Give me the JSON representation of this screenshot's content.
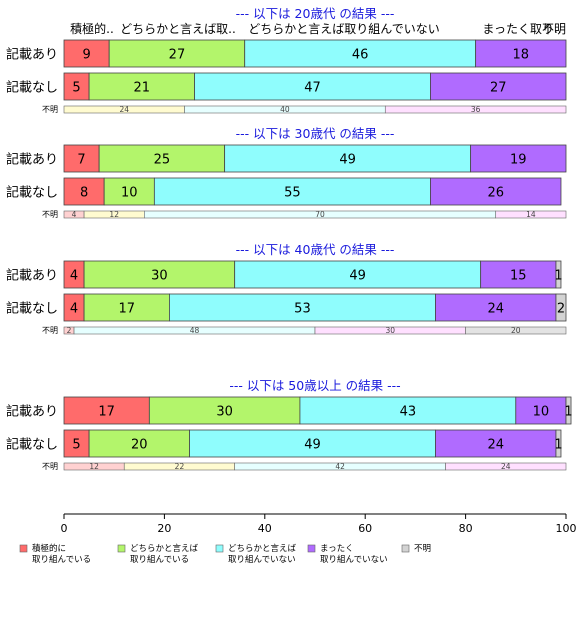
{
  "chart_data": {
    "type": "bar",
    "orientation": "horizontal",
    "stacked": true,
    "xlim": [
      0,
      100
    ],
    "x_ticks": [
      0,
      20,
      40,
      60,
      80,
      100
    ],
    "column_headers": [
      "積極的..",
      "どちらかと言えば取..",
      "どちらかと言えば取り組んでいない",
      "まったく取り..",
      "不明"
    ],
    "legend": [
      {
        "key": "c1",
        "lines": [
          "積極的に",
          "取り組んでいる"
        ],
        "color": "#ff6b6b"
      },
      {
        "key": "c2",
        "lines": [
          "どちらかと言えば",
          "取り組んでいる"
        ],
        "color": "#b3f56b"
      },
      {
        "key": "c3",
        "lines": [
          "どちらかと言えば",
          "取り組んでいない"
        ],
        "color": "#8ffdfd"
      },
      {
        "key": "c4",
        "lines": [
          "まったく",
          "取り組んでいない"
        ],
        "color": "#b06bff"
      },
      {
        "key": "c5",
        "lines": [
          "不明"
        ],
        "color": "#d3d3d3"
      }
    ],
    "small_colors": [
      "#ffd1d1",
      "#fffbd0",
      "#e6ffff",
      "#ffe0ff",
      "#e3e3e3"
    ],
    "panels": [
      {
        "title": "--- 以下は 20歳代 の結果 ---",
        "rows": [
          {
            "label": "記載あり",
            "values": [
              9,
              27,
              46,
              18,
              0
            ]
          },
          {
            "label": "記載なし",
            "values": [
              5,
              21,
              47,
              27,
              0
            ]
          }
        ],
        "unknown": {
          "label": "不明",
          "values": [
            0,
            24,
            40,
            36,
            0
          ]
        }
      },
      {
        "title": "--- 以下は 30歳代 の結果 ---",
        "rows": [
          {
            "label": "記載あり",
            "values": [
              7,
              25,
              49,
              19,
              0
            ]
          },
          {
            "label": "記載なし",
            "values": [
              8,
              10,
              55,
              26,
              0
            ]
          }
        ],
        "unknown": {
          "label": "不明",
          "values": [
            4,
            12,
            70,
            14,
            0
          ]
        }
      },
      {
        "title": "--- 以下は 40歳代 の結果 ---",
        "rows": [
          {
            "label": "記載あり",
            "values": [
              4,
              30,
              49,
              15,
              1
            ]
          },
          {
            "label": "記載なし",
            "values": [
              4,
              17,
              53,
              24,
              2
            ]
          }
        ],
        "unknown": {
          "label": "不明",
          "values": [
            2,
            0,
            48,
            30,
            20
          ]
        }
      },
      {
        "title": "--- 以下は 50歳以上 の結果 ---",
        "rows": [
          {
            "label": "記載あり",
            "values": [
              17,
              30,
              43,
              10,
              1
            ]
          },
          {
            "label": "記載なし",
            "values": [
              5,
              20,
              49,
              24,
              1
            ]
          }
        ],
        "unknown": {
          "label": "不明",
          "values": [
            12,
            22,
            42,
            24,
            0
          ]
        }
      }
    ]
  }
}
